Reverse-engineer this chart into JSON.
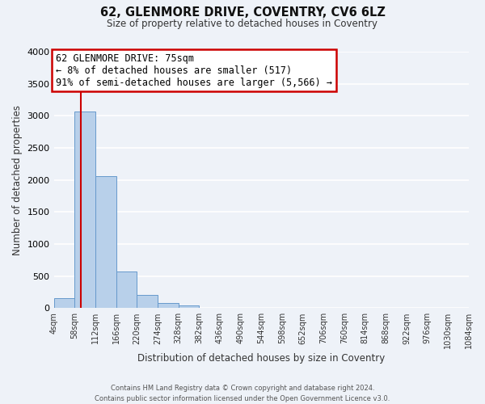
{
  "title": "62, GLENMORE DRIVE, COVENTRY, CV6 6LZ",
  "subtitle": "Size of property relative to detached houses in Coventry",
  "xlabel": "Distribution of detached houses by size in Coventry",
  "ylabel": "Number of detached properties",
  "property_size": 75,
  "property_line_color": "#cc0000",
  "bar_color": "#b8d0ea",
  "bar_edge_color": "#6699cc",
  "annotation_box_color": "#cc0000",
  "annotation_title": "62 GLENMORE DRIVE: 75sqm",
  "annotation_line1": "← 8% of detached houses are smaller (517)",
  "annotation_line2": "91% of semi-detached houses are larger (5,566) →",
  "bin_edges": [
    4,
    58,
    112,
    166,
    220,
    274,
    328,
    382,
    436,
    490,
    544,
    598,
    652,
    706,
    760,
    814,
    868,
    922,
    976,
    1030,
    1084
  ],
  "bin_counts": [
    150,
    3070,
    2060,
    570,
    205,
    75,
    40,
    5,
    5,
    0,
    0,
    0,
    0,
    0,
    0,
    0,
    0,
    0,
    0,
    0
  ],
  "ylim": [
    0,
    4000
  ],
  "yticks": [
    0,
    500,
    1000,
    1500,
    2000,
    2500,
    3000,
    3500,
    4000
  ],
  "background_color": "#eef2f8",
  "grid_color": "#ffffff",
  "footer_line1": "Contains HM Land Registry data © Crown copyright and database right 2024.",
  "footer_line2": "Contains public sector information licensed under the Open Government Licence v3.0."
}
